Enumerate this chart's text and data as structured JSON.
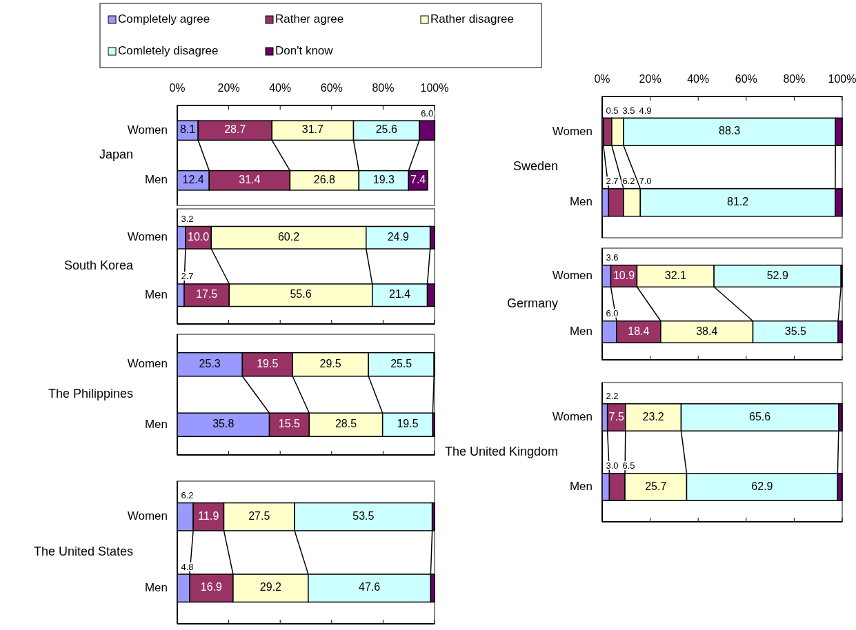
{
  "chart_data": [
    {
      "type": "bar",
      "orientation": "horizontal",
      "stacked": true,
      "legend": "top",
      "ylabel": "Japan",
      "categories": [
        "Women",
        "Men"
      ],
      "xlim": [
        0,
        100
      ],
      "xticks": [
        {
          "value": 0,
          "label": "0%"
        },
        {
          "value": 20,
          "label": "20%"
        },
        {
          "value": 40,
          "label": "40%"
        },
        {
          "value": 60,
          "label": "60%"
        },
        {
          "value": 80,
          "label": "80%"
        },
        {
          "value": 100,
          "label": "100%"
        }
      ],
      "series": [
        {
          "name": "Completely agree",
          "color": "#9999ff",
          "values": [
            8.1,
            12.4
          ],
          "value_labels": [
            "8.1",
            "12.4"
          ]
        },
        {
          "name": "Rather agree",
          "color": "#993366",
          "values": [
            28.7,
            31.4
          ],
          "value_labels": [
            "28.7",
            "31.4"
          ]
        },
        {
          "name": "Rather disagree",
          "color": "#ffffcc",
          "values": [
            31.7,
            26.8
          ],
          "value_labels": [
            "31.7",
            "26.8"
          ]
        },
        {
          "name": "Comletely disagree",
          "color": "#ccffff",
          "values": [
            25.6,
            19.3
          ],
          "value_labels": [
            "25.6",
            "19.3"
          ]
        },
        {
          "name": "Don't know",
          "color": "#660066",
          "values": [
            6.0,
            7.4
          ],
          "value_labels": [
            "6.0",
            "7.4"
          ]
        }
      ]
    },
    {
      "type": "bar",
      "orientation": "horizontal",
      "stacked": true,
      "ylabel": "South Korea",
      "categories": [
        "Women",
        "Men"
      ],
      "xlim": [
        0,
        100
      ],
      "tick_labels": "y",
      "xticks": [
        {
          "value": 0,
          "label": null
        },
        {
          "value": 20,
          "label": null
        },
        {
          "value": 40,
          "label": null
        },
        {
          "value": 60,
          "label": null
        },
        {
          "value": 80,
          "label": null
        },
        {
          "value": 100,
          "label": null
        }
      ],
      "series": [
        {
          "color": "#9999ff",
          "values": [
            3.2,
            2.7
          ],
          "value_labels": [
            "3.2",
            "2.7"
          ]
        },
        {
          "color": "#993366",
          "values": [
            10.0,
            17.5
          ],
          "value_labels": [
            "10.0",
            "17.5"
          ]
        },
        {
          "color": "#ffffcc",
          "values": [
            60.2,
            55.6
          ],
          "value_labels": [
            "60.2",
            "55.6"
          ]
        },
        {
          "color": "#ccffff",
          "values": [
            24.9,
            21.4
          ],
          "value_labels": [
            "24.9",
            "21.4"
          ]
        },
        {
          "color": "#660066",
          "values": [
            1.7,
            2.8
          ],
          "value_labels": [
            null,
            null
          ]
        }
      ]
    },
    {
      "type": "bar",
      "orientation": "horizontal",
      "stacked": true,
      "ylabel": "The Philippines",
      "categories": [
        "Women",
        "Men"
      ],
      "xlim": [
        0,
        100
      ],
      "tick_labels": "y",
      "xticks": [
        {
          "value": 0,
          "label": null
        },
        {
          "value": 20,
          "label": null
        },
        {
          "value": 40,
          "label": null
        },
        {
          "value": 60,
          "label": null
        },
        {
          "value": 80,
          "label": null
        },
        {
          "value": 100,
          "label": null
        }
      ],
      "series": [
        {
          "color": "#9999ff",
          "values": [
            25.3,
            35.8
          ],
          "value_labels": [
            "25.3",
            "35.8"
          ]
        },
        {
          "color": "#993366",
          "values": [
            19.5,
            15.5
          ],
          "value_labels": [
            "19.5",
            "15.5"
          ]
        },
        {
          "color": "#ffffcc",
          "values": [
            29.5,
            28.5
          ],
          "value_labels": [
            "29.5",
            "28.5"
          ]
        },
        {
          "color": "#ccffff",
          "values": [
            25.5,
            19.5
          ],
          "value_labels": [
            "25.5",
            "19.5"
          ]
        },
        {
          "color": "#660066",
          "values": [
            0.2,
            0.7
          ],
          "value_labels": [
            null,
            null
          ]
        }
      ]
    },
    {
      "type": "bar",
      "orientation": "horizontal",
      "stacked": true,
      "ylabel": "The United States",
      "categories": [
        "Women",
        "Men"
      ],
      "xlim": [
        0,
        100
      ],
      "tick_labels": "y",
      "xticks": [
        {
          "value": 0,
          "label": null
        },
        {
          "value": 20,
          "label": null
        },
        {
          "value": 40,
          "label": null
        },
        {
          "value": 60,
          "label": null
        },
        {
          "value": 80,
          "label": null
        },
        {
          "value": 100,
          "label": null
        }
      ],
      "series": [
        {
          "color": "#9999ff",
          "values": [
            6.2,
            4.8
          ],
          "value_labels": [
            "6.2",
            "4.8"
          ]
        },
        {
          "color": "#993366",
          "values": [
            11.9,
            16.9
          ],
          "value_labels": [
            "11.9",
            "16.9"
          ]
        },
        {
          "color": "#ffffcc",
          "values": [
            27.5,
            29.2
          ],
          "value_labels": [
            "27.5",
            "29.2"
          ]
        },
        {
          "color": "#ccffff",
          "values": [
            53.5,
            47.6
          ],
          "value_labels": [
            "53.5",
            "47.6"
          ]
        },
        {
          "color": "#660066",
          "values": [
            0.9,
            1.5
          ],
          "value_labels": [
            null,
            null
          ]
        }
      ]
    },
    {
      "type": "bar",
      "orientation": "horizontal",
      "stacked": true,
      "ylabel": "Sweden",
      "categories": [
        "Women",
        "Men"
      ],
      "xlim": [
        0,
        100
      ],
      "xticks": [
        {
          "value": 0,
          "label": "0%"
        },
        {
          "value": 20,
          "label": "20%"
        },
        {
          "value": 40,
          "label": "40%"
        },
        {
          "value": 60,
          "label": "60%"
        },
        {
          "value": 80,
          "label": "80%"
        },
        {
          "value": 100,
          "label": "100%"
        }
      ],
      "series": [
        {
          "color": "#9999ff",
          "values": [
            0.5,
            2.7
          ],
          "value_labels": [
            "0.5",
            "2.7"
          ]
        },
        {
          "color": "#993366",
          "values": [
            3.5,
            6.2
          ],
          "value_labels": [
            "3.5",
            "6.2"
          ]
        },
        {
          "color": "#ffffcc",
          "values": [
            4.9,
            7.0
          ],
          "value_labels": [
            "4.9",
            "7.0"
          ]
        },
        {
          "color": "#ccffff",
          "values": [
            88.3,
            81.2
          ],
          "value_labels": [
            "88.3",
            "81.2"
          ]
        },
        {
          "color": "#660066",
          "values": [
            2.8,
            2.9
          ],
          "value_labels": [
            null,
            null
          ]
        }
      ]
    },
    {
      "type": "bar",
      "orientation": "horizontal",
      "stacked": true,
      "ylabel": "Germany",
      "categories": [
        "Women",
        "Men"
      ],
      "xlim": [
        0,
        100
      ],
      "tick_labels": "y",
      "xticks": [
        {
          "value": 0,
          "label": null
        },
        {
          "value": 20,
          "label": null
        },
        {
          "value": 40,
          "label": null
        },
        {
          "value": 60,
          "label": null
        },
        {
          "value": 80,
          "label": null
        },
        {
          "value": 100,
          "label": null
        }
      ],
      "series": [
        {
          "color": "#9999ff",
          "values": [
            3.6,
            6.0
          ],
          "value_labels": [
            "3.6",
            "6.0"
          ]
        },
        {
          "color": "#993366",
          "values": [
            10.9,
            18.4
          ],
          "value_labels": [
            "10.9",
            "18.4"
          ]
        },
        {
          "color": "#ffffcc",
          "values": [
            32.1,
            38.4
          ],
          "value_labels": [
            "32.1",
            "38.4"
          ]
        },
        {
          "color": "#ccffff",
          "values": [
            52.9,
            35.5
          ],
          "value_labels": [
            "52.9",
            "35.5"
          ]
        },
        {
          "color": "#660066",
          "values": [
            0.5,
            1.7
          ],
          "value_labels": [
            null,
            null
          ]
        }
      ]
    },
    {
      "type": "bar",
      "orientation": "horizontal",
      "stacked": true,
      "ylabel": "The United Kingdom",
      "categories": [
        "Women",
        "Men"
      ],
      "xlim": [
        0,
        100
      ],
      "tick_labels": "y",
      "xticks": [
        {
          "value": 0,
          "label": null
        },
        {
          "value": 20,
          "label": null
        },
        {
          "value": 40,
          "label": null
        },
        {
          "value": 60,
          "label": null
        },
        {
          "value": 80,
          "label": null
        },
        {
          "value": 100,
          "label": null
        }
      ],
      "series": [
        {
          "color": "#9999ff",
          "values": [
            2.2,
            3.0
          ],
          "value_labels": [
            "2.2",
            "3.0"
          ]
        },
        {
          "color": "#993366",
          "values": [
            7.5,
            6.5
          ],
          "value_labels": [
            "7.5",
            "6.5"
          ]
        },
        {
          "color": "#ffffcc",
          "values": [
            23.2,
            25.7
          ],
          "value_labels": [
            "23.2",
            "25.7"
          ]
        },
        {
          "color": "#ccffff",
          "values": [
            65.6,
            62.9
          ],
          "value_labels": [
            "65.6",
            "62.9"
          ]
        },
        {
          "color": "#660066",
          "values": [
            1.5,
            1.9
          ],
          "value_labels": [
            null,
            null
          ]
        }
      ]
    }
  ]
}
